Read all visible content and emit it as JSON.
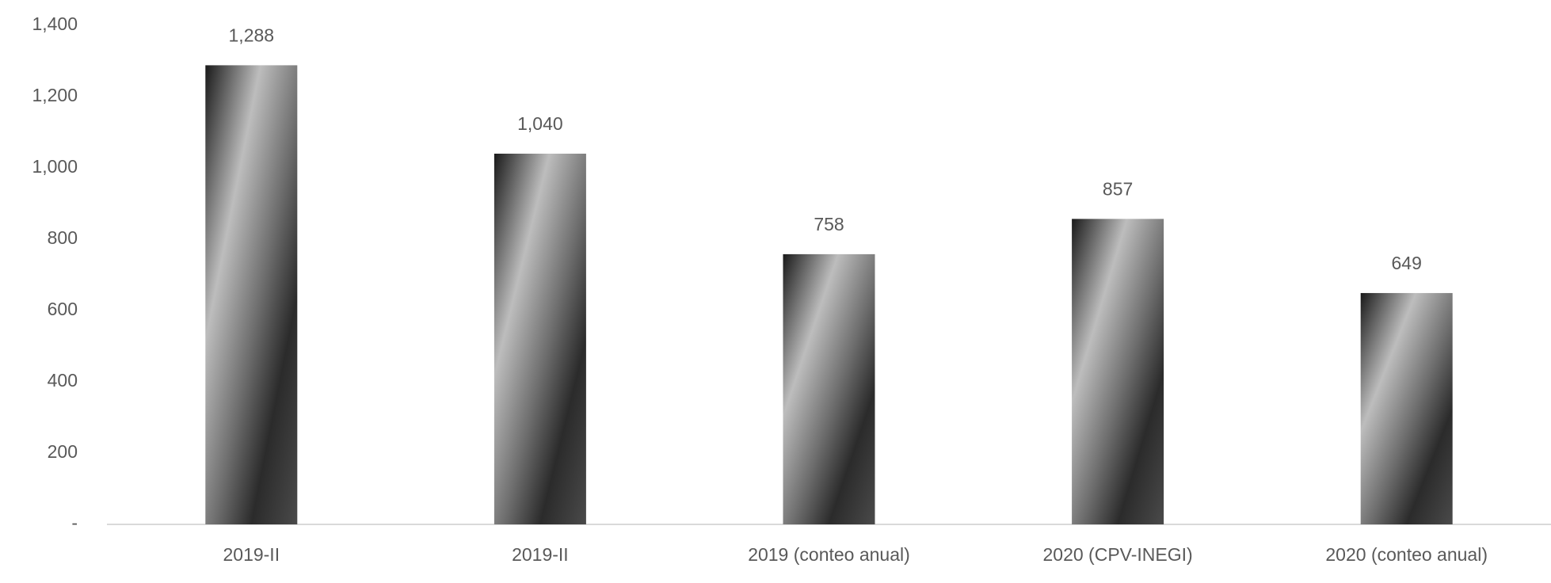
{
  "chart_data": {
    "type": "bar",
    "categories": [
      "2019-II",
      "2019-II",
      "2019 (conteo anual)",
      "2020 (CPV-INEGI)",
      "2020 (conteo anual)"
    ],
    "values": [
      1288,
      1040,
      758,
      857,
      649
    ],
    "value_labels": [
      "1,288",
      "1,040",
      "758",
      "857",
      "649"
    ],
    "ylim": [
      0,
      1400
    ],
    "yticks": [
      {
        "value": 0,
        "label": "-"
      },
      {
        "value": 200,
        "label": "200"
      },
      {
        "value": 400,
        "label": "400"
      },
      {
        "value": 600,
        "label": "600"
      },
      {
        "value": 800,
        "label": "800"
      },
      {
        "value": 1000,
        "label": "1,000"
      },
      {
        "value": 1200,
        "label": "1,200"
      },
      {
        "value": 1400,
        "label": "1,400"
      }
    ],
    "grid": false
  }
}
